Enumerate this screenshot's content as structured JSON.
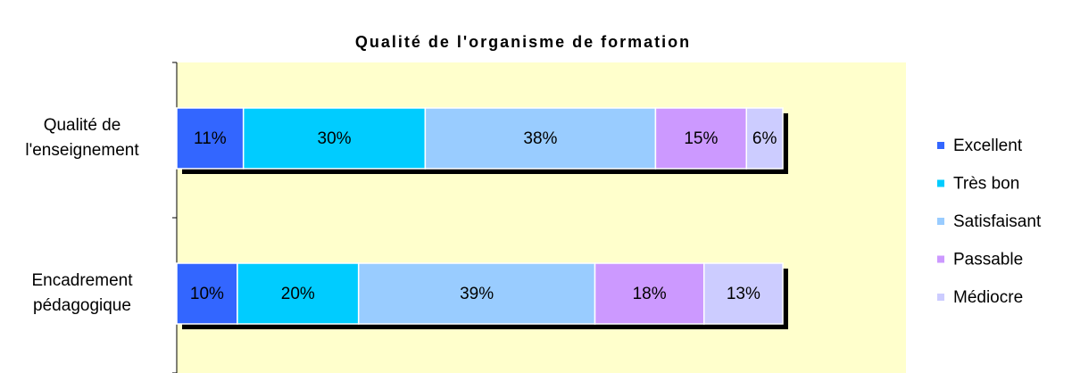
{
  "chart_data": {
    "type": "stacked-barh",
    "title": "Qualité de l'organisme de formation",
    "categories": [
      "Qualité de l'enseignement",
      "Encadrement pédagogique"
    ],
    "series": [
      {
        "name": "Excellent",
        "color": "#3366ff",
        "values": [
          11,
          10
        ],
        "value_labels": [
          "11%",
          "10%"
        ]
      },
      {
        "name": "Très bon",
        "color": "#00ccff",
        "values": [
          30,
          20
        ],
        "value_labels": [
          "30%",
          "20%"
        ]
      },
      {
        "name": "Satisfaisant",
        "color": "#99ccff",
        "values": [
          38,
          39
        ],
        "value_labels": [
          "38%",
          "39%"
        ]
      },
      {
        "name": "Passable",
        "color": "#cc99ff",
        "values": [
          15,
          18
        ],
        "value_labels": [
          "15%",
          "18%"
        ]
      },
      {
        "name": "Médiocre",
        "color": "#ccccff",
        "values": [
          6,
          13
        ],
        "value_labels": [
          "6%",
          "13%"
        ]
      }
    ],
    "xlim": [
      0,
      100
    ],
    "legend": "right",
    "plot_background": "#ffffcc"
  }
}
